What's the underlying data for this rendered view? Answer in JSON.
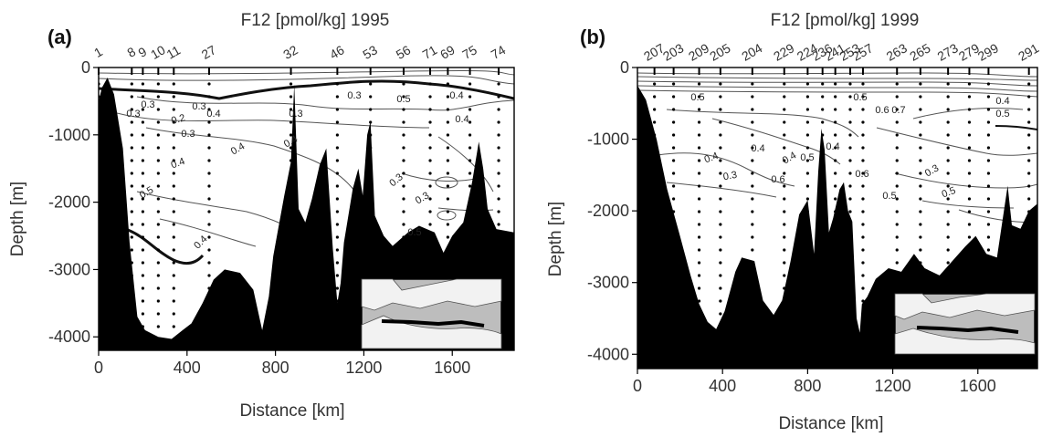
{
  "chart_data": [
    {
      "type": "contour-section",
      "panel_label": "(a)",
      "title": "F12 [pmol/kg] 1995",
      "xlabel": "Distance [km]",
      "ylabel": "Depth [m]",
      "xlim": [
        0,
        1880
      ],
      "ylim": [
        -4200,
        0
      ],
      "xticks": [
        0,
        400,
        800,
        1200,
        1600
      ],
      "yticks": [
        0,
        -1000,
        -2000,
        -3000,
        -4000
      ],
      "stations": [
        {
          "label": "1",
          "x": 0
        },
        {
          "label": "8",
          "x": 150
        },
        {
          "label": "9",
          "x": 200
        },
        {
          "label": "10",
          "x": 270
        },
        {
          "label": "11",
          "x": 340
        },
        {
          "label": "27",
          "x": 500
        },
        {
          "label": "32",
          "x": 870
        },
        {
          "label": "46",
          "x": 1080
        },
        {
          "label": "53",
          "x": 1230
        },
        {
          "label": "56",
          "x": 1380
        },
        {
          "label": "71",
          "x": 1500
        },
        {
          "label": "69",
          "x": 1580
        },
        {
          "label": "75",
          "x": 1680
        },
        {
          "label": "74",
          "x": 1810
        }
      ],
      "contour_labels": [
        "0.3",
        "0.3",
        "0.2",
        "0.3",
        "0.4",
        "0.3",
        "0.4",
        "0.4",
        "0.5",
        "0.4",
        "0.3",
        "0.3",
        "0.5",
        "0.4",
        "0.4",
        "0.3",
        "0.3",
        "0.5",
        "0.4"
      ],
      "bathymetry": [
        [
          0,
          -500
        ],
        [
          15,
          -300
        ],
        [
          40,
          -150
        ],
        [
          70,
          -400
        ],
        [
          110,
          -1200
        ],
        [
          140,
          -2600
        ],
        [
          175,
          -3700
        ],
        [
          210,
          -3900
        ],
        [
          270,
          -4000
        ],
        [
          330,
          -4030
        ],
        [
          380,
          -3900
        ],
        [
          420,
          -3800
        ],
        [
          470,
          -3500
        ],
        [
          520,
          -3150
        ],
        [
          570,
          -3000
        ],
        [
          640,
          -3050
        ],
        [
          700,
          -3300
        ],
        [
          740,
          -3900
        ],
        [
          770,
          -3400
        ],
        [
          790,
          -2800
        ],
        [
          840,
          -1900
        ],
        [
          870,
          -1400
        ],
        [
          885,
          -250
        ],
        [
          905,
          -2100
        ],
        [
          935,
          -2300
        ],
        [
          965,
          -1950
        ],
        [
          1000,
          -1450
        ],
        [
          1030,
          -1200
        ],
        [
          1060,
          -2700
        ],
        [
          1080,
          -3500
        ],
        [
          1095,
          -3200
        ],
        [
          1110,
          -2600
        ],
        [
          1150,
          -1800
        ],
        [
          1175,
          -1500
        ],
        [
          1195,
          -1900
        ],
        [
          1215,
          -1000
        ],
        [
          1230,
          -800
        ],
        [
          1250,
          -2200
        ],
        [
          1290,
          -2500
        ],
        [
          1330,
          -2650
        ],
        [
          1400,
          -2450
        ],
        [
          1450,
          -2350
        ],
        [
          1520,
          -2450
        ],
        [
          1560,
          -2750
        ],
        [
          1600,
          -2500
        ],
        [
          1650,
          -2300
        ],
        [
          1690,
          -1700
        ],
        [
          1720,
          -1100
        ],
        [
          1740,
          -1500
        ],
        [
          1760,
          -2100
        ],
        [
          1800,
          -2400
        ],
        [
          1880,
          -2450
        ]
      ],
      "inset": "map of the section track"
    },
    {
      "type": "contour-section",
      "panel_label": "(b)",
      "title": "F12 [pmol/kg] 1999",
      "xlabel": "Distance [km]",
      "ylabel": "Depth [m]",
      "xlim": [
        0,
        1880
      ],
      "ylim": [
        -4200,
        0
      ],
      "xticks": [
        0,
        400,
        800,
        1200,
        1600
      ],
      "yticks": [
        0,
        -1000,
        -2000,
        -3000,
        -4000
      ],
      "stations": [
        {
          "label": "207",
          "x": 80
        },
        {
          "label": "203",
          "x": 170
        },
        {
          "label": "209",
          "x": 290
        },
        {
          "label": "205",
          "x": 390
        },
        {
          "label": "204",
          "x": 540
        },
        {
          "label": "229",
          "x": 690
        },
        {
          "label": "224",
          "x": 800
        },
        {
          "label": "236",
          "x": 870
        },
        {
          "label": "241",
          "x": 930
        },
        {
          "label": "253",
          "x": 1000
        },
        {
          "label": "257",
          "x": 1060
        },
        {
          "label": "263",
          "x": 1220
        },
        {
          "label": "265",
          "x": 1330
        },
        {
          "label": "273",
          "x": 1460
        },
        {
          "label": "279",
          "x": 1560
        },
        {
          "label": "299",
          "x": 1650
        },
        {
          "label": "291",
          "x": 1840
        }
      ],
      "contour_labels": [
        "0.5",
        "0.5",
        "0.6",
        "0.7",
        "0.4",
        "0.3",
        "0.6",
        "0.4",
        "0.4",
        "0.5",
        "0.4",
        "0.6",
        "0.5",
        "0.5",
        "0.3",
        "0.5",
        "0.4"
      ],
      "bathymetry": [
        [
          0,
          -250
        ],
        [
          40,
          -450
        ],
        [
          90,
          -1000
        ],
        [
          140,
          -1700
        ],
        [
          200,
          -2350
        ],
        [
          250,
          -2900
        ],
        [
          290,
          -3300
        ],
        [
          330,
          -3550
        ],
        [
          370,
          -3650
        ],
        [
          410,
          -3400
        ],
        [
          460,
          -2850
        ],
        [
          490,
          -2650
        ],
        [
          550,
          -2700
        ],
        [
          590,
          -3250
        ],
        [
          640,
          -3450
        ],
        [
          680,
          -3250
        ],
        [
          720,
          -2700
        ],
        [
          760,
          -2050
        ],
        [
          800,
          -1850
        ],
        [
          830,
          -2600
        ],
        [
          850,
          -1450
        ],
        [
          865,
          -850
        ],
        [
          880,
          -1150
        ],
        [
          900,
          -2300
        ],
        [
          920,
          -2100
        ],
        [
          950,
          -1700
        ],
        [
          970,
          -1600
        ],
        [
          990,
          -2000
        ],
        [
          1010,
          -2150
        ],
        [
          1030,
          -3500
        ],
        [
          1045,
          -3700
        ],
        [
          1055,
          -3300
        ],
        [
          1080,
          -3200
        ],
        [
          1120,
          -2950
        ],
        [
          1180,
          -2800
        ],
        [
          1240,
          -2850
        ],
        [
          1300,
          -2600
        ],
        [
          1350,
          -2800
        ],
        [
          1420,
          -2900
        ],
        [
          1480,
          -2700
        ],
        [
          1540,
          -2500
        ],
        [
          1590,
          -2350
        ],
        [
          1640,
          -2600
        ],
        [
          1690,
          -2650
        ],
        [
          1740,
          -1650
        ],
        [
          1760,
          -2200
        ],
        [
          1800,
          -2250
        ],
        [
          1840,
          -2000
        ],
        [
          1880,
          -1900
        ]
      ],
      "inset": "map of the section track"
    }
  ]
}
